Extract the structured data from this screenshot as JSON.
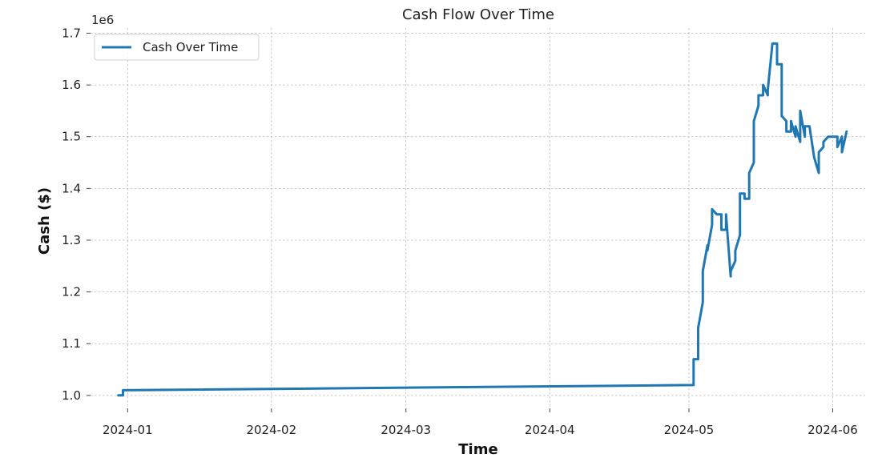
{
  "chart_data": {
    "type": "line",
    "title": "Cash Flow Over Time",
    "xlabel": "Time",
    "ylabel": "Cash ($)",
    "y_offset_text": "1e6",
    "ylim": [
      0.975,
      1.71
    ],
    "xlim": [
      "2023-12-24",
      "2024-06-08"
    ],
    "grid": true,
    "legend_position": "upper-left",
    "x_tick_labels": [
      "2024-01",
      "2024-02",
      "2024-03",
      "2024-04",
      "2024-05",
      "2024-06"
    ],
    "y_tick_labels": [
      "1.0",
      "1.1",
      "1.2",
      "1.3",
      "1.4",
      "1.5",
      "1.6",
      "1.7"
    ],
    "series": [
      {
        "name": "Cash Over Time",
        "color": "#1f77b4",
        "x": [
          "2023-12-30",
          "2023-12-31",
          "2023-12-31",
          "2024-05-02",
          "2024-05-02",
          "2024-05-03",
          "2024-05-03",
          "2024-05-04",
          "2024-05-04",
          "2024-05-05",
          "2024-05-05",
          "2024-05-06",
          "2024-05-06",
          "2024-05-07",
          "2024-05-07",
          "2024-05-08",
          "2024-05-08",
          "2024-05-09",
          "2024-05-09",
          "2024-05-10",
          "2024-05-10",
          "2024-05-11",
          "2024-05-11",
          "2024-05-12",
          "2024-05-12",
          "2024-05-13",
          "2024-05-13",
          "2024-05-14",
          "2024-05-14",
          "2024-05-15",
          "2024-05-15",
          "2024-05-16",
          "2024-05-16",
          "2024-05-17",
          "2024-05-17",
          "2024-05-18",
          "2024-05-18",
          "2024-05-19",
          "2024-05-19",
          "2024-05-20",
          "2024-05-20",
          "2024-05-21",
          "2024-05-21",
          "2024-05-22",
          "2024-05-22",
          "2024-05-23",
          "2024-05-23",
          "2024-05-24",
          "2024-05-24",
          "2024-05-25",
          "2024-05-25",
          "2024-05-26",
          "2024-05-26",
          "2024-05-27",
          "2024-05-27",
          "2024-05-28",
          "2024-05-28",
          "2024-05-29",
          "2024-05-29",
          "2024-05-30",
          "2024-05-30",
          "2024-05-31",
          "2024-05-31",
          "2024-06-01",
          "2024-06-01",
          "2024-06-02",
          "2024-06-02",
          "2024-06-03",
          "2024-06-03",
          "2024-06-04"
        ],
        "y": [
          1.0,
          1.0,
          1.01,
          1.02,
          1.07,
          1.07,
          1.13,
          1.18,
          1.24,
          1.29,
          1.28,
          1.33,
          1.36,
          1.35,
          1.35,
          1.35,
          1.32,
          1.32,
          1.35,
          1.23,
          1.24,
          1.26,
          1.28,
          1.31,
          1.39,
          1.39,
          1.38,
          1.38,
          1.43,
          1.45,
          1.53,
          1.56,
          1.58,
          1.58,
          1.6,
          1.58,
          1.59,
          1.68,
          1.68,
          1.68,
          1.64,
          1.64,
          1.54,
          1.53,
          1.51,
          1.51,
          1.53,
          1.5,
          1.52,
          1.49,
          1.55,
          1.5,
          1.52,
          1.52,
          1.52,
          1.46,
          1.46,
          1.43,
          1.47,
          1.48,
          1.49,
          1.5,
          1.5,
          1.5,
          1.5,
          1.5,
          1.48,
          1.5,
          1.47,
          1.51
        ]
      }
    ]
  }
}
